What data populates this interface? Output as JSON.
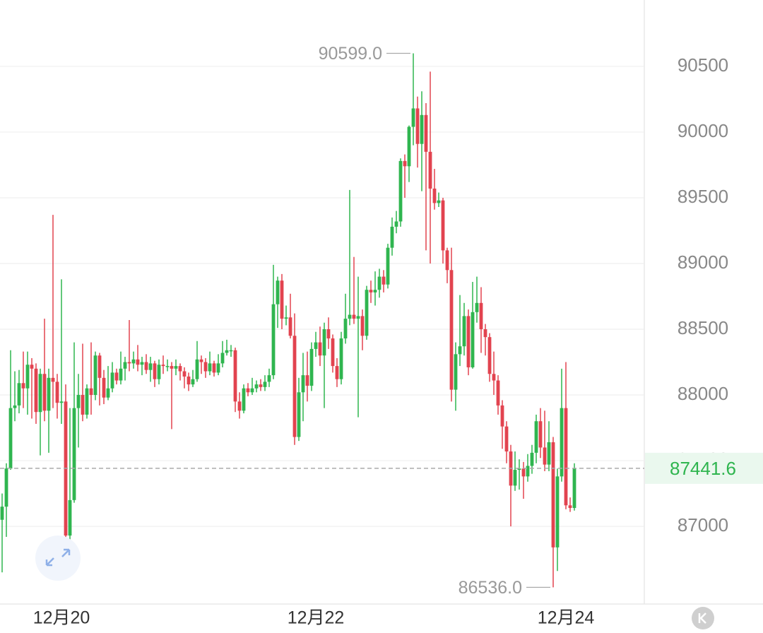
{
  "chart_data": {
    "type": "candlestick",
    "up_color": "#2fb54f",
    "down_color": "#e2434f",
    "grid": true,
    "ylim": [
      86409,
      91005
    ],
    "yticks": [
      87000,
      87500,
      88000,
      88500,
      89000,
      89500,
      90000,
      90500
    ],
    "xlim": [
      -0.5,
      151.5
    ],
    "xticks": [
      {
        "value": 14,
        "label": "12月20"
      },
      {
        "value": 74,
        "label": "12月22"
      },
      {
        "value": 133,
        "label": "12月24"
      }
    ],
    "max_label": {
      "value": 90599,
      "label": "90599.0"
    },
    "min_label": {
      "value": 86536,
      "label": "86536.0"
    },
    "last_price": 87441.6,
    "open": [
      87050,
      87150,
      87440,
      87900,
      87920,
      88090,
      88050,
      88230,
      88200,
      87870,
      88160,
      87880,
      88130,
      88100,
      87940,
      87950,
      86930,
      87200,
      87900,
      88000,
      87850,
      88050,
      88000,
      88300,
      88130,
      87980,
      88050,
      88170,
      88110,
      88200,
      88250,
      88240,
      88270,
      88230,
      88250,
      88190,
      88240,
      88120,
      88230,
      88220,
      88220,
      88200,
      88220,
      88180,
      88140,
      88080,
      88120,
      88270,
      88250,
      88180,
      88240,
      88170,
      88240,
      88320,
      88340,
      88340,
      87950,
      87880,
      88050,
      88020,
      88050,
      88080,
      88060,
      88100,
      88150,
      88690,
      88870,
      88580,
      88590,
      88450,
      87680,
      88020,
      88150,
      88070,
      88350,
      88400,
      88300,
      88500,
      88430,
      88220,
      88120,
      88430,
      88580,
      88610,
      88580,
      88600,
      88450,
      88800,
      88780,
      88800,
      88900,
      88840,
      89120,
      89280,
      89320,
      89780,
      89740,
      90040,
      90180,
      89910,
      90130,
      89850,
      89570,
      89460,
      89480,
      89100,
      88950,
      88040,
      88310,
      88370,
      88600,
      88210,
      88630,
      88700,
      88500,
      88440,
      88160,
      88110,
      87920,
      87760,
      87570,
      87310,
      87430,
      87440,
      87380,
      87460,
      87560,
      87800,
      87600,
      87470,
      87640,
      86840,
      87380,
      87900,
      87160,
      87140
    ],
    "high": [
      87250,
      87480,
      88340,
      88180,
      88190,
      88330,
      88330,
      88280,
      88240,
      88200,
      88580,
      88200,
      89370,
      88160,
      88880,
      88080,
      87900,
      88400,
      88160,
      88390,
      88080,
      88400,
      88330,
      88320,
      88190,
      88220,
      88250,
      88200,
      88330,
      88290,
      88570,
      88330,
      88380,
      88290,
      88310,
      88290,
      88260,
      88270,
      88300,
      88270,
      88250,
      88270,
      88240,
      88210,
      88170,
      88190,
      88410,
      88300,
      88280,
      88330,
      88260,
      88310,
      88410,
      88420,
      88380,
      88360,
      88020,
      88080,
      88090,
      88130,
      88110,
      88120,
      88150,
      88200,
      88990,
      88900,
      88920,
      88680,
      88770,
      88620,
      88130,
      88320,
      88330,
      88400,
      88480,
      88520,
      88550,
      88590,
      88460,
      88280,
      88480,
      88770,
      89560,
      89050,
      88900,
      88650,
      88830,
      88870,
      88940,
      88960,
      88950,
      89150,
      89350,
      89400,
      89800,
      89830,
      90050,
      90599,
      90270,
      90310,
      90220,
      90460,
      89720,
      89540,
      89500,
      89120,
      89120,
      88400,
      88760,
      88700,
      88650,
      88860,
      88900,
      88820,
      88540,
      88470,
      88330,
      88150,
      87960,
      87800,
      87620,
      87570,
      87510,
      87490,
      87550,
      87620,
      87850,
      87900,
      87880,
      87800,
      87680,
      87440,
      88200,
      88250,
      87220,
      87480
    ],
    "low": [
      86650,
      86920,
      87430,
      87800,
      87860,
      87900,
      87850,
      87820,
      87780,
      87540,
      87800,
      87560,
      87900,
      87820,
      87780,
      86860,
      86870,
      87180,
      87600,
      87800,
      87820,
      87850,
      87960,
      87920,
      87930,
      87960,
      88020,
      88080,
      88080,
      88110,
      88180,
      88200,
      88180,
      88150,
      88160,
      88100,
      88060,
      88080,
      88160,
      88180,
      87740,
      88150,
      88110,
      88050,
      88030,
      88060,
      88100,
      88160,
      88130,
      88150,
      88140,
      88150,
      88210,
      88300,
      88290,
      87870,
      87820,
      87860,
      87990,
      88000,
      88020,
      88030,
      88030,
      88060,
      88120,
      88510,
      88500,
      88530,
      88430,
      87620,
      87650,
      87800,
      87950,
      88030,
      88290,
      88220,
      87900,
      88350,
      88170,
      88060,
      88080,
      88390,
      88530,
      88540,
      87830,
      88340,
      88420,
      88700,
      88680,
      88740,
      88780,
      88810,
      89060,
      89230,
      89280,
      89500,
      89620,
      89900,
      89730,
      89550,
      89100,
      89000,
      89410,
      89430,
      89000,
      88850,
      87950,
      87880,
      88220,
      88300,
      88150,
      88200,
      88550,
      88320,
      88300,
      88100,
      88000,
      87850,
      87590,
      87480,
      87000,
      87270,
      87280,
      87210,
      87340,
      87400,
      87480,
      87520,
      87420,
      87420,
      86536,
      86660,
      87340,
      87130,
      87110,
      87120
    ],
    "close": [
      87150,
      87440,
      87900,
      87920,
      88090,
      88050,
      88230,
      88200,
      87870,
      88160,
      87880,
      88130,
      88100,
      87940,
      87950,
      86930,
      87200,
      87900,
      88000,
      87850,
      88050,
      88000,
      88300,
      88130,
      87980,
      88050,
      88170,
      88110,
      88200,
      88250,
      88240,
      88270,
      88230,
      88250,
      88190,
      88240,
      88120,
      88230,
      88220,
      88220,
      88200,
      88220,
      88180,
      88140,
      88080,
      88120,
      88270,
      88250,
      88180,
      88240,
      88170,
      88240,
      88320,
      88340,
      88340,
      87950,
      87880,
      88050,
      88020,
      88050,
      88080,
      88060,
      88100,
      88150,
      88690,
      88870,
      88580,
      88590,
      88450,
      87680,
      88020,
      88150,
      88070,
      88350,
      88400,
      88300,
      88500,
      88430,
      88220,
      88120,
      88430,
      88580,
      88610,
      88580,
      88600,
      88450,
      88800,
      88780,
      88800,
      88900,
      88840,
      89120,
      89280,
      89320,
      89780,
      89740,
      90040,
      90180,
      89910,
      90130,
      89850,
      89570,
      89460,
      89480,
      89100,
      88950,
      88040,
      88310,
      88370,
      88600,
      88210,
      88630,
      88700,
      88500,
      88440,
      88160,
      88110,
      87920,
      87760,
      87570,
      87310,
      87430,
      87440,
      87380,
      87460,
      87560,
      87800,
      87600,
      87470,
      87640,
      86840,
      87380,
      87900,
      87160,
      87140,
      87441.6
    ]
  }
}
